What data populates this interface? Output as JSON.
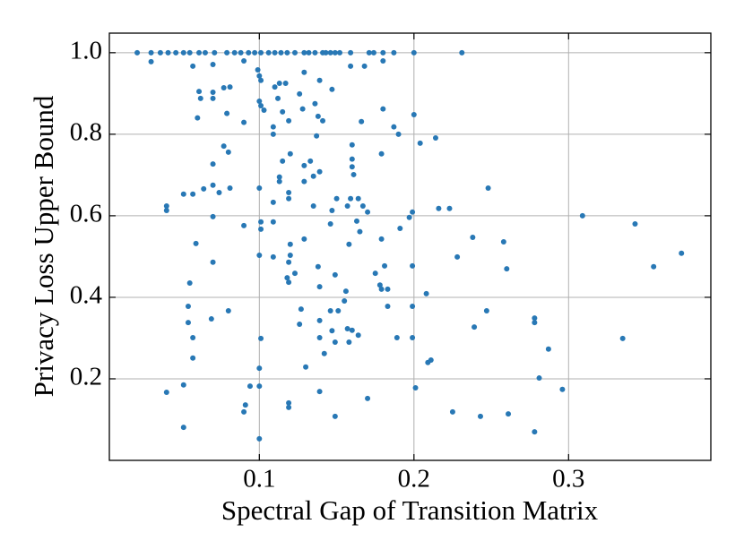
{
  "chart_data": {
    "type": "scatter",
    "xlabel": "Spectral Gap of Transition Matrix",
    "ylabel": "Privacy Loss Upper Bound",
    "color": "#2878b5",
    "grid": true,
    "xlim": [
      0.003,
      0.392
    ],
    "ylim": [
      0,
      1.048
    ],
    "xticks": [
      0.1,
      0.2,
      0.3
    ],
    "yticks": [
      0.2,
      0.4,
      0.6,
      0.8,
      {
        "value": 1,
        "label": "1.0"
      }
    ],
    "x": [
      0.021,
      0.03,
      0.036,
      0.041,
      0.046,
      0.051,
      0.055,
      0.061,
      0.065,
      0.071,
      0.079,
      0.084,
      0.088,
      0.093,
      0.097,
      0.101,
      0.106,
      0.11,
      0.114,
      0.118,
      0.123,
      0.129,
      0.132,
      0.136,
      0.141,
      0.143,
      0.146,
      0.149,
      0.152,
      0.159,
      0.171,
      0.174,
      0.18,
      0.187,
      0.2,
      0.231,
      0.03,
      0.057,
      0.07,
      0.09,
      0.099,
      0.1,
      0.101,
      0.061,
      0.07,
      0.077,
      0.081,
      0.062,
      0.07,
      0.06,
      0.079,
      0.09,
      0.1,
      0.101,
      0.103,
      0.11,
      0.113,
      0.117,
      0.112,
      0.115,
      0.119,
      0.109,
      0.109,
      0.129,
      0.139,
      0.147,
      0.126,
      0.128,
      0.136,
      0.138,
      0.141,
      0.137,
      0.159,
      0.168,
      0.18,
      0.166,
      0.16,
      0.18,
      0.187,
      0.19,
      0.2,
      0.204,
      0.214,
      0.179,
      0.077,
      0.08,
      0.07,
      0.074,
      0.07,
      0.064,
      0.057,
      0.051,
      0.081,
      0.09,
      0.07,
      0.04,
      0.04,
      0.059,
      0.07,
      0.055,
      0.054,
      0.054,
      0.057,
      0.057,
      0.069,
      0.08,
      0.051,
      0.04,
      0.051,
      0.091,
      0.09,
      0.094,
      0.1,
      0.1,
      0.101,
      0.1,
      0.1,
      0.101,
      0.101,
      0.1,
      0.109,
      0.109,
      0.109,
      0.113,
      0.113,
      0.115,
      0.119,
      0.12,
      0.119,
      0.12,
      0.12,
      0.119,
      0.118,
      0.119,
      0.123,
      0.129,
      0.129,
      0.133,
      0.135,
      0.135,
      0.129,
      0.139,
      0.138,
      0.139,
      0.139,
      0.139,
      0.127,
      0.126,
      0.13,
      0.119,
      0.119,
      0.139,
      0.147,
      0.15,
      0.146,
      0.149,
      0.146,
      0.151,
      0.147,
      0.149,
      0.142,
      0.149,
      0.156,
      0.155,
      0.159,
      0.157,
      0.16,
      0.16,
      0.161,
      0.164,
      0.167,
      0.163,
      0.165,
      0.158,
      0.16,
      0.158,
      0.157,
      0.164,
      0.17,
      0.17,
      0.179,
      0.181,
      0.178,
      0.179,
      0.183,
      0.183,
      0.175,
      0.189,
      0.191,
      0.197,
      0.199,
      0.199,
      0.199,
      0.199,
      0.201,
      0.208,
      0.209,
      0.211,
      0.216,
      0.223,
      0.228,
      0.225,
      0.238,
      0.239,
      0.243,
      0.248,
      0.247,
      0.258,
      0.26,
      0.261,
      0.278,
      0.278,
      0.278,
      0.281,
      0.287,
      0.296,
      0.309,
      0.335,
      0.343,
      0.355,
      0.373
    ],
    "values": [
      1,
      1,
      1,
      1,
      1,
      1,
      1,
      1,
      1,
      1,
      1,
      1,
      1,
      1,
      1,
      1,
      1,
      1,
      1,
      1,
      1,
      1,
      1,
      1,
      1,
      1,
      1,
      1,
      1,
      1,
      1,
      1,
      1,
      1,
      1,
      1,
      0.978,
      0.967,
      0.971,
      0.98,
      0.958,
      0.943,
      0.932,
      0.905,
      0.903,
      0.914,
      0.916,
      0.888,
      0.888,
      0.84,
      0.851,
      0.829,
      0.881,
      0.87,
      0.859,
      0.916,
      0.925,
      0.925,
      0.888,
      0.855,
      0.833,
      0.818,
      0.8,
      0.952,
      0.932,
      0.91,
      0.899,
      0.862,
      0.875,
      0.844,
      0.833,
      0.796,
      0.967,
      0.967,
      0.98,
      0.831,
      0.774,
      0.862,
      0.818,
      0.8,
      0.848,
      0.778,
      0.791,
      0.752,
      0.771,
      0.756,
      0.727,
      0.657,
      0.675,
      0.666,
      0.653,
      0.653,
      0.668,
      0.576,
      0.598,
      0.624,
      0.613,
      0.532,
      0.486,
      0.435,
      0.378,
      0.338,
      0.301,
      0.251,
      0.347,
      0.367,
      0.185,
      0.167,
      0.081,
      0.136,
      0.119,
      0.182,
      0.182,
      0.226,
      0.299,
      0.053,
      0.668,
      0.585,
      0.567,
      0.503,
      0.499,
      0.633,
      0.585,
      0.695,
      0.684,
      0.734,
      0.657,
      0.752,
      0.642,
      0.53,
      0.503,
      0.486,
      0.448,
      0.437,
      0.459,
      0.723,
      0.684,
      0.734,
      0.697,
      0.624,
      0.543,
      0.708,
      0.475,
      0.426,
      0.343,
      0.301,
      0.371,
      0.334,
      0.229,
      0.141,
      0.13,
      0.169,
      0.613,
      0.642,
      0.58,
      0.455,
      0.367,
      0.367,
      0.318,
      0.29,
      0.262,
      0.108,
      0.415,
      0.391,
      0.642,
      0.624,
      0.739,
      0.72,
      0.701,
      0.642,
      0.624,
      0.587,
      0.561,
      0.53,
      0.319,
      0.29,
      0.323,
      0.307,
      0.609,
      0.152,
      0.543,
      0.477,
      0.43,
      0.42,
      0.42,
      0.378,
      0.459,
      0.301,
      0.569,
      0.596,
      0.609,
      0.477,
      0.378,
      0.301,
      0.178,
      0.409,
      0.24,
      0.246,
      0.618,
      0.618,
      0.499,
      0.119,
      0.547,
      0.327,
      0.108,
      0.668,
      0.367,
      0.536,
      0.47,
      0.114,
      0.349,
      0.338,
      0.07,
      0.202,
      0.273,
      0.174,
      0.6,
      0.299,
      0.58,
      0.475,
      0.508
    ]
  }
}
